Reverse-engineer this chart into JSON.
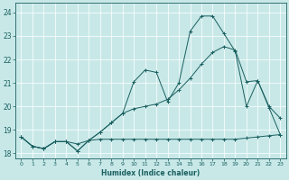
{
  "xlabel": "Humidex (Indice chaleur)",
  "bg_color": "#c8e8e8",
  "line_color": "#1a5f5f",
  "xlim": [
    -0.5,
    23.5
  ],
  "ylim": [
    17.8,
    24.4
  ],
  "yticks": [
    18,
    19,
    20,
    21,
    22,
    23,
    24
  ],
  "xticks": [
    0,
    1,
    2,
    3,
    4,
    5,
    6,
    7,
    8,
    9,
    10,
    11,
    12,
    13,
    14,
    15,
    16,
    17,
    18,
    19,
    20,
    21,
    22,
    23
  ],
  "line1_x": [
    0,
    1,
    2,
    3,
    4,
    5,
    6,
    7,
    8,
    9,
    10,
    11,
    12,
    13,
    14,
    15,
    16,
    17,
    18,
    19,
    20,
    21,
    22,
    23
  ],
  "line1_y": [
    18.7,
    18.3,
    18.2,
    18.5,
    18.5,
    18.4,
    18.55,
    18.6,
    18.6,
    18.6,
    18.6,
    18.6,
    18.6,
    18.6,
    18.6,
    18.6,
    18.6,
    18.6,
    18.6,
    18.6,
    18.65,
    18.7,
    18.75,
    18.8
  ],
  "line2_x": [
    0,
    1,
    2,
    3,
    4,
    5,
    6,
    7,
    8,
    9,
    10,
    11,
    12,
    13,
    14,
    15,
    16,
    17,
    18,
    19,
    20,
    21,
    22,
    23
  ],
  "line2_y": [
    18.7,
    18.3,
    18.2,
    18.5,
    18.5,
    18.1,
    18.55,
    18.9,
    19.3,
    19.7,
    19.9,
    20.0,
    20.1,
    20.3,
    20.7,
    21.2,
    21.8,
    22.3,
    22.55,
    22.4,
    21.05,
    21.1,
    20.0,
    19.5
  ],
  "line3_x": [
    0,
    1,
    2,
    3,
    4,
    5,
    6,
    7,
    8,
    9,
    10,
    11,
    12,
    13,
    14,
    15,
    16,
    17,
    18,
    19,
    20,
    21,
    22,
    23
  ],
  "line3_y": [
    18.7,
    18.3,
    18.2,
    18.5,
    18.5,
    18.1,
    18.55,
    18.9,
    19.3,
    19.7,
    21.05,
    21.55,
    21.45,
    20.2,
    21.0,
    23.2,
    23.85,
    23.85,
    23.1,
    22.35,
    20.0,
    21.1,
    19.95,
    18.8
  ]
}
